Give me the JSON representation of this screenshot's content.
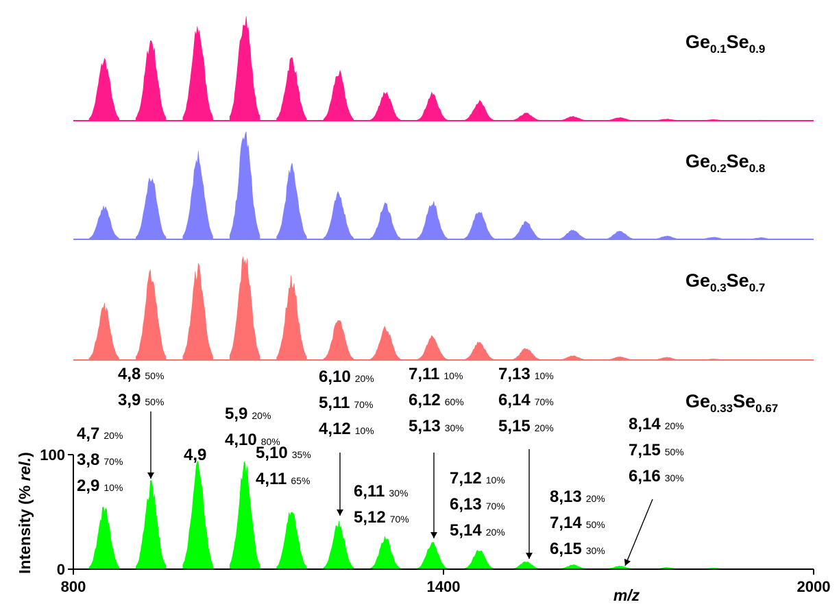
{
  "chart_data": {
    "type": "area",
    "xlabel": "m/z",
    "ylabel": "Intensity (% rel.)",
    "xlim": [
      800,
      2000
    ],
    "ylim": [
      0,
      100
    ],
    "x_ticks": [
      "800",
      "1400",
      "2000"
    ],
    "y_ticks": [
      "0",
      "100"
    ],
    "peak_positions": [
      850,
      926,
      1002,
      1078,
      1154,
      1230,
      1306,
      1382,
      1458,
      1534,
      1610,
      1686,
      1762,
      1838,
      1914
    ],
    "series": [
      {
        "name": "Ge0.1Se0.9",
        "label_main": [
          "Ge",
          "Se"
        ],
        "label_sub": [
          "0.1",
          "0.9"
        ],
        "color": "#ff1a8c",
        "values": [
          57,
          76,
          87,
          100,
          58,
          45,
          27,
          25,
          18,
          7,
          4,
          3,
          1.5,
          1,
          0.5
        ]
      },
      {
        "name": "Ge0.2Se0.8",
        "label_main": [
          "Ge",
          "Se"
        ],
        "label_sub": [
          "0.2",
          "0.8"
        ],
        "color": "#8080ff",
        "values": [
          30,
          58,
          79,
          100,
          67,
          42,
          33,
          35,
          28,
          16,
          9,
          8,
          3,
          2,
          1.5
        ]
      },
      {
        "name": "Ge0.3Se0.7",
        "label_main": [
          "Ge",
          "Se"
        ],
        "label_sub": [
          "0.3",
          "0.7"
        ],
        "color": "#ff7070",
        "values": [
          52,
          82,
          88,
          100,
          76,
          38,
          31,
          22,
          17,
          11,
          4,
          3,
          2.5,
          1,
          0.5
        ]
      },
      {
        "name": "Ge0.33Se0.67",
        "label_main": [
          "Ge",
          "Se"
        ],
        "label_sub": [
          "0.33",
          "0.67"
        ],
        "color": "#00ff00",
        "values": [
          57,
          78,
          100,
          100,
          57,
          44,
          29,
          25,
          18,
          7,
          4,
          3,
          1.5,
          1,
          0.5
        ]
      }
    ],
    "annotations": [
      {
        "lines": [
          [
            "4,7",
            "20%"
          ],
          [
            "3,8",
            "70%"
          ],
          [
            "2,9",
            "10%"
          ]
        ]
      },
      {
        "lines": [
          [
            "4,8",
            "50%"
          ],
          [
            "3,9",
            "50%"
          ]
        ]
      },
      {
        "lines": [
          [
            "4,9",
            ""
          ]
        ]
      },
      {
        "lines": [
          [
            "5,9",
            "20%"
          ],
          [
            "4,10",
            "80%"
          ]
        ]
      },
      {
        "lines": [
          [
            "5,10",
            "35%"
          ],
          [
            "4,11",
            "65%"
          ]
        ]
      },
      {
        "lines": [
          [
            "6,10",
            "20%"
          ],
          [
            "5,11",
            "70%"
          ],
          [
            "4,12",
            "10%"
          ]
        ]
      },
      {
        "lines": [
          [
            "6,11",
            "30%"
          ],
          [
            "5,12",
            "70%"
          ]
        ]
      },
      {
        "lines": [
          [
            "7,11",
            "10%"
          ],
          [
            "6,12",
            "60%"
          ],
          [
            "5,13",
            "30%"
          ]
        ]
      },
      {
        "lines": [
          [
            "7,12",
            "10%"
          ],
          [
            "6,13",
            "70%"
          ],
          [
            "5,14",
            "20%"
          ]
        ]
      },
      {
        "lines": [
          [
            "7,13",
            "10%"
          ],
          [
            "6,14",
            "70%"
          ],
          [
            "5,15",
            "20%"
          ]
        ]
      },
      {
        "lines": [
          [
            "8,13",
            "20%"
          ],
          [
            "7,14",
            "50%"
          ],
          [
            "6,15",
            "30%"
          ]
        ]
      },
      {
        "lines": [
          [
            "8,14",
            "20%"
          ],
          [
            "7,15",
            "50%"
          ],
          [
            "6,16",
            "30%"
          ]
        ]
      }
    ]
  }
}
